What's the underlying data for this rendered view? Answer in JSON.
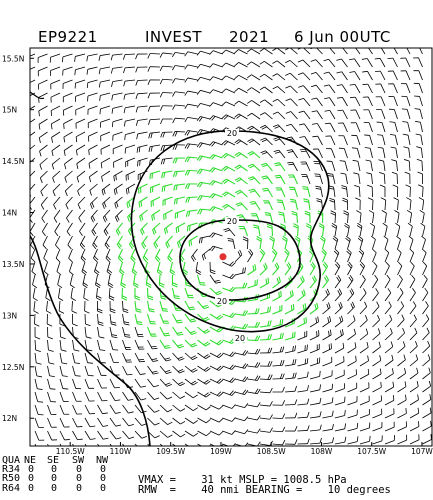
{
  "title": {
    "storm_id": "EP9221",
    "storm_name": "INVEST",
    "year": "2021",
    "datetime": "6 Jun 00UTC"
  },
  "map": {
    "lat_labels": [
      "15.5N",
      "15N",
      "14.5N",
      "14N",
      "13.5N",
      "13N",
      "12.5N",
      "12N"
    ],
    "lat_values": [
      15.5,
      15.0,
      14.5,
      14.0,
      13.5,
      13.0,
      12.5,
      12.0
    ],
    "lon_labels": [
      "110.5W",
      "110W",
      "109.5W",
      "109W",
      "108.5W",
      "108W",
      "107.5W",
      "107W"
    ],
    "lon_values": [
      -110.5,
      -110.0,
      -109.5,
      -109.0,
      -108.5,
      -108.0,
      -107.5,
      -107.0
    ],
    "lon_range": [
      -110.9,
      -106.9
    ],
    "lat_range": [
      11.73,
      15.6
    ],
    "center": {
      "lon": -108.98,
      "lat": 13.57,
      "color": "#e03030"
    },
    "contour_label": "20",
    "contour_color": "#000000",
    "barb_color": "#000000",
    "highlight_barb_color": "#33dd33",
    "coast_color": "#000000"
  },
  "footer": {
    "quadrant_header": [
      "QUA",
      "NE",
      "SE",
      "SW",
      "NW"
    ],
    "rows": [
      {
        "label": "R34",
        "values": [
          "0",
          "0",
          "0",
          "0"
        ]
      },
      {
        "label": "R50",
        "values": [
          "0",
          "0",
          "0",
          "0"
        ]
      },
      {
        "label": "R64",
        "values": [
          "0",
          "0",
          "0",
          "0"
        ]
      }
    ],
    "vmax_line": "VMAX =    31 kt MSLP = 1008.5 hPa",
    "rmw_line": "RMW  =    40 nmi BEARING =    10 degrees"
  }
}
